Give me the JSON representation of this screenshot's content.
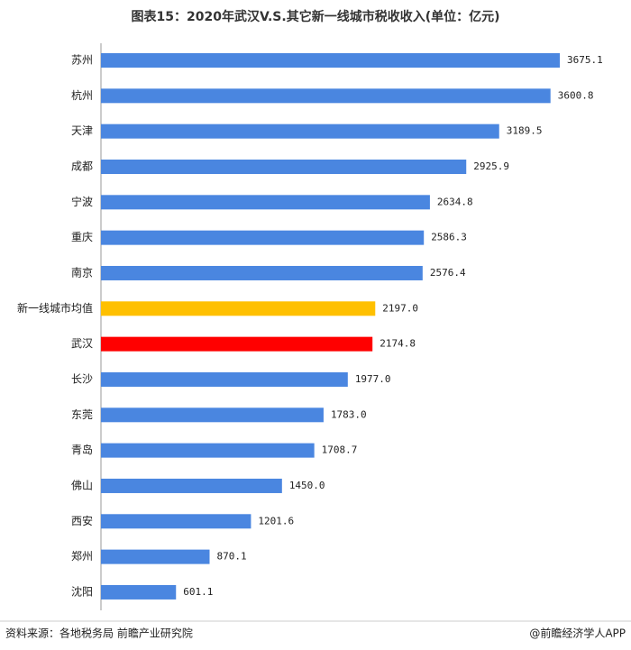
{
  "chart_data": {
    "type": "bar",
    "orientation": "horizontal",
    "title": "图表15：2020年武汉V.S.其它新一线城市税收收入(单位：亿元)",
    "categories": [
      "苏州",
      "杭州",
      "天津",
      "成都",
      "宁波",
      "重庆",
      "南京",
      "新一线城市均值",
      "武汉",
      "长沙",
      "东莞",
      "青岛",
      "佛山",
      "西安",
      "郑州",
      "沈阳"
    ],
    "values": [
      3675.1,
      3600.8,
      3189.5,
      2925.9,
      2634.8,
      2586.3,
      2576.4,
      2197.0,
      2174.8,
      1977.0,
      1783.0,
      1708.7,
      1450.0,
      1201.6,
      870.1,
      601.1
    ],
    "value_labels": [
      "3675.1",
      "3600.8",
      "3189.5",
      "2925.9",
      "2634.8",
      "2586.3",
      "2576.4",
      "2197.0",
      "2174.8",
      "1977.0",
      "1783.0",
      "1708.7",
      "1450.0",
      "1201.6",
      "870.1",
      "601.1"
    ],
    "colors": [
      "#4a86e0",
      "#4a86e0",
      "#4a86e0",
      "#4a86e0",
      "#4a86e0",
      "#4a86e0",
      "#4a86e0",
      "#ffc000",
      "#ff0000",
      "#4a86e0",
      "#4a86e0",
      "#4a86e0",
      "#4a86e0",
      "#4a86e0",
      "#4a86e0",
      "#4a86e0"
    ],
    "source": "资料来源：各地税务局 前瞻产业研究院",
    "credit": "@前瞻经济学人APP"
  }
}
